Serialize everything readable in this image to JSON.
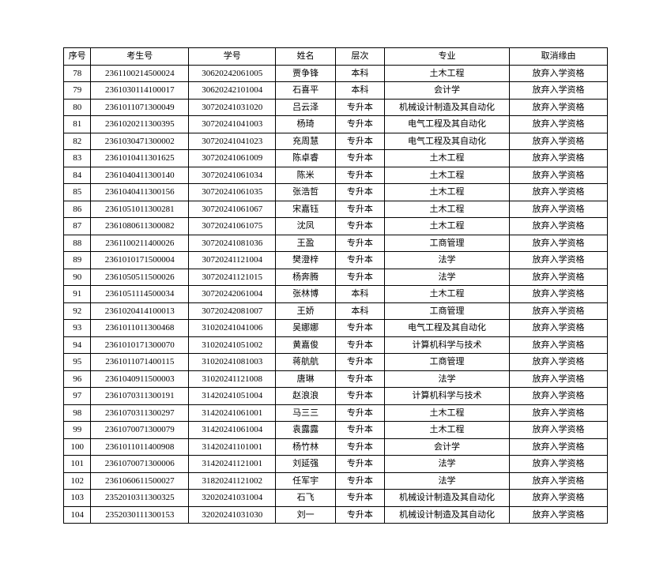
{
  "columns": [
    "序号",
    "考生号",
    "学号",
    "姓名",
    "层次",
    "专业",
    "取消缘由"
  ],
  "rows": [
    [
      "78",
      "2361100214500024",
      "30620242061005",
      "贾争锋",
      "本科",
      "土木工程",
      "放弃入学资格"
    ],
    [
      "79",
      "2361030114100017",
      "30620242101004",
      "石喜平",
      "本科",
      "会计学",
      "放弃入学资格"
    ],
    [
      "80",
      "2361011071300049",
      "30720241031020",
      "吕云泽",
      "专升本",
      "机械设计制造及其自动化",
      "放弃入学资格"
    ],
    [
      "81",
      "2361020211300395",
      "30720241041003",
      "杨琦",
      "专升本",
      "电气工程及其自动化",
      "放弃入学资格"
    ],
    [
      "82",
      "2361030471300002",
      "30720241041023",
      "充周慧",
      "专升本",
      "电气工程及其自动化",
      "放弃入学资格"
    ],
    [
      "83",
      "2361010411301625",
      "30720241061009",
      "陈卓睿",
      "专升本",
      "土木工程",
      "放弃入学资格"
    ],
    [
      "84",
      "2361040411300140",
      "30720241061034",
      "陈米",
      "专升本",
      "土木工程",
      "放弃入学资格"
    ],
    [
      "85",
      "2361040411300156",
      "30720241061035",
      "张浩哲",
      "专升本",
      "土木工程",
      "放弃入学资格"
    ],
    [
      "86",
      "2361051011300281",
      "30720241061067",
      "宋嘉钰",
      "专升本",
      "土木工程",
      "放弃入学资格"
    ],
    [
      "87",
      "2361080611300082",
      "30720241061075",
      "沈凤",
      "专升本",
      "土木工程",
      "放弃入学资格"
    ],
    [
      "88",
      "2361100211400026",
      "30720241081036",
      "王盈",
      "专升本",
      "工商管理",
      "放弃入学资格"
    ],
    [
      "89",
      "2361010171500004",
      "30720241121004",
      "樊澄梓",
      "专升本",
      "法学",
      "放弃入学资格"
    ],
    [
      "90",
      "2361050511500026",
      "30720241121015",
      "杨奔腾",
      "专升本",
      "法学",
      "放弃入学资格"
    ],
    [
      "91",
      "2361051114500034",
      "30720242061004",
      "张林博",
      "本科",
      "土木工程",
      "放弃入学资格"
    ],
    [
      "92",
      "2361020414100013",
      "30720242081007",
      "王娇",
      "本科",
      "工商管理",
      "放弃入学资格"
    ],
    [
      "93",
      "2361011011300468",
      "31020241041006",
      "吴娜娜",
      "专升本",
      "电气工程及其自动化",
      "放弃入学资格"
    ],
    [
      "94",
      "2361010171300070",
      "31020241051002",
      "黄嘉俊",
      "专升本",
      "计算机科学与技术",
      "放弃入学资格"
    ],
    [
      "95",
      "2361011071400115",
      "31020241081003",
      "蒋航航",
      "专升本",
      "工商管理",
      "放弃入学资格"
    ],
    [
      "96",
      "2361040911500003",
      "31020241121008",
      "唐琳",
      "专升本",
      "法学",
      "放弃入学资格"
    ],
    [
      "97",
      "2361070311300191",
      "31420241051004",
      "赵浪浪",
      "专升本",
      "计算机科学与技术",
      "放弃入学资格"
    ],
    [
      "98",
      "2361070311300297",
      "31420241061001",
      "马三三",
      "专升本",
      "土木工程",
      "放弃入学资格"
    ],
    [
      "99",
      "2361070071300079",
      "31420241061004",
      "袁露露",
      "专升本",
      "土木工程",
      "放弃入学资格"
    ],
    [
      "100",
      "2361011011400908",
      "31420241101001",
      "杨竹林",
      "专升本",
      "会计学",
      "放弃入学资格"
    ],
    [
      "101",
      "2361070071300006",
      "31420241121001",
      "刘延强",
      "专升本",
      "法学",
      "放弃入学资格"
    ],
    [
      "102",
      "2361060611500027",
      "31820241121002",
      "任军宇",
      "专升本",
      "法学",
      "放弃入学资格"
    ],
    [
      "103",
      "2352010311300325",
      "32020241031004",
      "石飞",
      "专升本",
      "机械设计制造及其自动化",
      "放弃入学资格"
    ],
    [
      "104",
      "2352030111300153",
      "32020241031030",
      "刘一",
      "专升本",
      "机械设计制造及其自动化",
      "放弃入学资格"
    ]
  ]
}
